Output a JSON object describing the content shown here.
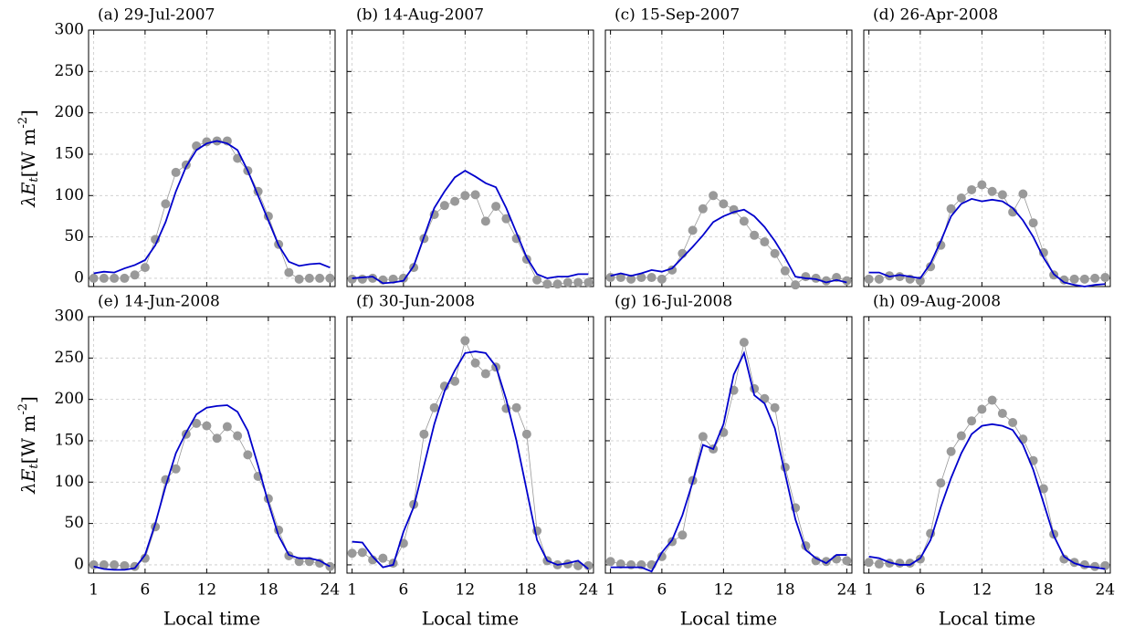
{
  "chart_data": [
    {
      "type": "line",
      "title": "(a) 29-Jul-2007",
      "ylabel": {
        "main": "λE",
        "sub": "t",
        "unit": "[W m",
        "sup": "-2",
        "end": "]"
      },
      "x": [
        1,
        2,
        3,
        4,
        5,
        6,
        7,
        8,
        9,
        10,
        11,
        12,
        13,
        14,
        15,
        16,
        17,
        18,
        19,
        20,
        21,
        22,
        23,
        24
      ],
      "xlim": [
        0.5,
        24.5
      ],
      "xticks": [
        1,
        6,
        12,
        18,
        24
      ],
      "ylim": [
        -10,
        300
      ],
      "yticks": [
        0,
        50,
        100,
        150,
        200,
        250,
        300
      ],
      "grid": true,
      "series": [
        {
          "color": "#999999",
          "marker": "circle",
          "values": [
            0,
            0,
            0,
            0,
            4,
            13,
            47,
            90,
            128,
            137,
            160,
            165,
            166,
            166,
            145,
            130,
            105,
            75,
            41,
            7,
            -1,
            0,
            0,
            0
          ]
        },
        {
          "color": "#0000cc",
          "values": [
            6,
            8,
            7,
            12,
            16,
            22,
            40,
            68,
            105,
            135,
            155,
            163,
            166,
            163,
            155,
            130,
            100,
            70,
            40,
            20,
            15,
            17,
            18,
            13
          ]
        }
      ]
    },
    {
      "type": "line",
      "title": "(b) 14-Aug-2007",
      "x": [
        1,
        2,
        3,
        4,
        5,
        6,
        7,
        8,
        9,
        10,
        11,
        12,
        13,
        14,
        15,
        16,
        17,
        18,
        19,
        20,
        21,
        22,
        23,
        24
      ],
      "xlim": [
        0.5,
        24.5
      ],
      "xticks": [
        1,
        6,
        12,
        18,
        24
      ],
      "ylim": [
        -10,
        300
      ],
      "yticks": [
        0,
        50,
        100,
        150,
        200,
        250,
        300
      ],
      "grid": true,
      "series": [
        {
          "color": "#999999",
          "marker": "circle",
          "values": [
            -1,
            -1,
            0,
            -2,
            -1,
            0,
            13,
            48,
            77,
            88,
            93,
            100,
            101,
            69,
            87,
            72,
            48,
            23,
            -2,
            -7,
            -7,
            -5,
            -5,
            -5
          ]
        },
        {
          "color": "#0000cc",
          "values": [
            0,
            1,
            2,
            -6,
            -5,
            -3,
            15,
            50,
            85,
            105,
            122,
            130,
            123,
            115,
            110,
            85,
            55,
            25,
            5,
            0,
            2,
            2,
            5,
            5
          ]
        }
      ]
    },
    {
      "type": "line",
      "title": "(c) 15-Sep-2007",
      "x": [
        1,
        2,
        3,
        4,
        5,
        6,
        7,
        8,
        9,
        10,
        11,
        12,
        13,
        14,
        15,
        16,
        17,
        18,
        19,
        20,
        21,
        22,
        23,
        24
      ],
      "xlim": [
        0.5,
        24.5
      ],
      "xticks": [
        1,
        6,
        12,
        18,
        24
      ],
      "ylim": [
        -10,
        300
      ],
      "yticks": [
        0,
        50,
        100,
        150,
        200,
        250,
        300
      ],
      "grid": true,
      "series": [
        {
          "color": "#999999",
          "marker": "circle",
          "values": [
            1,
            1,
            -1,
            1,
            1,
            -1,
            10,
            30,
            58,
            84,
            100,
            90,
            83,
            69,
            52,
            44,
            30,
            9,
            -8,
            2,
            0,
            -3,
            1,
            -3
          ]
        },
        {
          "color": "#0000cc",
          "values": [
            3,
            6,
            3,
            6,
            10,
            8,
            12,
            25,
            38,
            52,
            68,
            75,
            80,
            83,
            75,
            62,
            45,
            25,
            2,
            0,
            -1,
            -5,
            -2,
            -5
          ]
        }
      ]
    },
    {
      "type": "line",
      "title": "(d) 26-Apr-2008",
      "x": [
        1,
        2,
        3,
        4,
        5,
        6,
        7,
        8,
        9,
        10,
        11,
        12,
        13,
        14,
        15,
        16,
        17,
        18,
        19,
        20,
        21,
        22,
        23,
        24
      ],
      "xlim": [
        0.5,
        24.5
      ],
      "xticks": [
        1,
        6,
        12,
        18,
        24
      ],
      "ylim": [
        -10,
        300
      ],
      "yticks": [
        0,
        50,
        100,
        150,
        200,
        250,
        300
      ],
      "grid": true,
      "series": [
        {
          "color": "#999999",
          "marker": "circle",
          "values": [
            -1,
            -1,
            3,
            2,
            -1,
            -3,
            14,
            40,
            84,
            97,
            107,
            113,
            105,
            101,
            80,
            102,
            67,
            31,
            4,
            -2,
            -1,
            -1,
            0,
            1
          ]
        },
        {
          "color": "#0000cc",
          "values": [
            7,
            7,
            2,
            4,
            2,
            0,
            18,
            45,
            75,
            90,
            96,
            93,
            95,
            93,
            85,
            70,
            50,
            25,
            5,
            -5,
            -8,
            -10,
            -8,
            -7
          ]
        }
      ]
    },
    {
      "type": "line",
      "title": "(e) 14-Jun-2008",
      "xlabel": "Local time",
      "ylabel": {
        "main": "λE",
        "sub": "t",
        "unit": "[W m",
        "sup": "-2",
        "end": "]"
      },
      "x": [
        1,
        2,
        3,
        4,
        5,
        6,
        7,
        8,
        9,
        10,
        11,
        12,
        13,
        14,
        15,
        16,
        17,
        18,
        19,
        20,
        21,
        22,
        23,
        24
      ],
      "xlim": [
        0.5,
        24.5
      ],
      "xticks": [
        1,
        6,
        12,
        18,
        24
      ],
      "ylim": [
        -10,
        300
      ],
      "yticks": [
        0,
        50,
        100,
        150,
        200,
        250,
        300
      ],
      "grid": true,
      "series": [
        {
          "color": "#999999",
          "marker": "circle",
          "values": [
            0,
            0,
            0,
            -1,
            -2,
            8,
            46,
            103,
            116,
            158,
            171,
            168,
            153,
            167,
            156,
            133,
            107,
            80,
            42,
            11,
            4,
            4,
            2,
            -2
          ]
        },
        {
          "color": "#0000cc",
          "values": [
            -2,
            -5,
            -6,
            -6,
            -4,
            12,
            50,
            95,
            135,
            160,
            182,
            190,
            192,
            193,
            185,
            162,
            120,
            75,
            35,
            12,
            8,
            8,
            5,
            -2
          ]
        }
      ]
    },
    {
      "type": "line",
      "title": "(f) 30-Jun-2008",
      "xlabel": "Local time",
      "x": [
        1,
        2,
        3,
        4,
        5,
        6,
        7,
        8,
        9,
        10,
        11,
        12,
        13,
        14,
        15,
        16,
        17,
        18,
        19,
        20,
        21,
        22,
        23,
        24
      ],
      "xlim": [
        0.5,
        24.5
      ],
      "xticks": [
        1,
        6,
        12,
        18,
        24
      ],
      "ylim": [
        -10,
        300
      ],
      "yticks": [
        0,
        50,
        100,
        150,
        200,
        250,
        300
      ],
      "grid": true,
      "series": [
        {
          "color": "#999999",
          "marker": "circle",
          "values": [
            14,
            15,
            6,
            8,
            2,
            26,
            73,
            158,
            190,
            216,
            222,
            271,
            244,
            231,
            239,
            189,
            190,
            158,
            41,
            5,
            0,
            1,
            -1,
            -1
          ]
        },
        {
          "color": "#0000cc",
          "values": [
            28,
            27,
            10,
            -3,
            0,
            40,
            70,
            120,
            170,
            210,
            235,
            256,
            258,
            256,
            240,
            200,
            150,
            90,
            30,
            5,
            0,
            2,
            5,
            -5
          ]
        }
      ]
    },
    {
      "type": "line",
      "title": "(g) 16-Jul-2008",
      "xlabel": "Local time",
      "x": [
        1,
        2,
        3,
        4,
        5,
        6,
        7,
        8,
        9,
        10,
        11,
        12,
        13,
        14,
        15,
        16,
        17,
        18,
        19,
        20,
        21,
        22,
        23,
        24
      ],
      "xlim": [
        0.5,
        24.5
      ],
      "xticks": [
        1,
        6,
        12,
        18,
        24
      ],
      "ylim": [
        -10,
        300
      ],
      "yticks": [
        0,
        50,
        100,
        150,
        200,
        250,
        300
      ],
      "grid": true,
      "series": [
        {
          "color": "#999999",
          "marker": "circle",
          "values": [
            4,
            1,
            0,
            0,
            0,
            10,
            28,
            36,
            102,
            155,
            140,
            160,
            211,
            269,
            213,
            201,
            190,
            118,
            69,
            23,
            5,
            4,
            7,
            5
          ]
        },
        {
          "color": "#0000cc",
          "values": [
            -3,
            -3,
            -3,
            -3,
            -8,
            15,
            30,
            60,
            100,
            145,
            140,
            170,
            230,
            256,
            205,
            195,
            165,
            110,
            55,
            18,
            8,
            2,
            12,
            12
          ]
        }
      ]
    },
    {
      "type": "line",
      "title": "(h) 09-Aug-2008",
      "xlabel": "Local time",
      "x": [
        1,
        2,
        3,
        4,
        5,
        6,
        7,
        8,
        9,
        10,
        11,
        12,
        13,
        14,
        15,
        16,
        17,
        18,
        19,
        20,
        21,
        22,
        23,
        24
      ],
      "xlim": [
        0.5,
        24.5
      ],
      "xticks": [
        1,
        6,
        12,
        18,
        24
      ],
      "ylim": [
        -10,
        300
      ],
      "yticks": [
        0,
        50,
        100,
        150,
        200,
        250,
        300
      ],
      "grid": true,
      "series": [
        {
          "color": "#999999",
          "marker": "circle",
          "values": [
            3,
            1,
            2,
            2,
            2,
            7,
            38,
            99,
            137,
            156,
            174,
            188,
            199,
            183,
            172,
            152,
            126,
            92,
            37,
            7,
            3,
            0,
            -2,
            -1
          ]
        },
        {
          "color": "#0000cc",
          "values": [
            10,
            8,
            3,
            0,
            0,
            8,
            30,
            70,
            105,
            135,
            158,
            168,
            170,
            168,
            163,
            145,
            115,
            75,
            35,
            10,
            2,
            -2,
            -3,
            -5
          ]
        }
      ]
    }
  ]
}
